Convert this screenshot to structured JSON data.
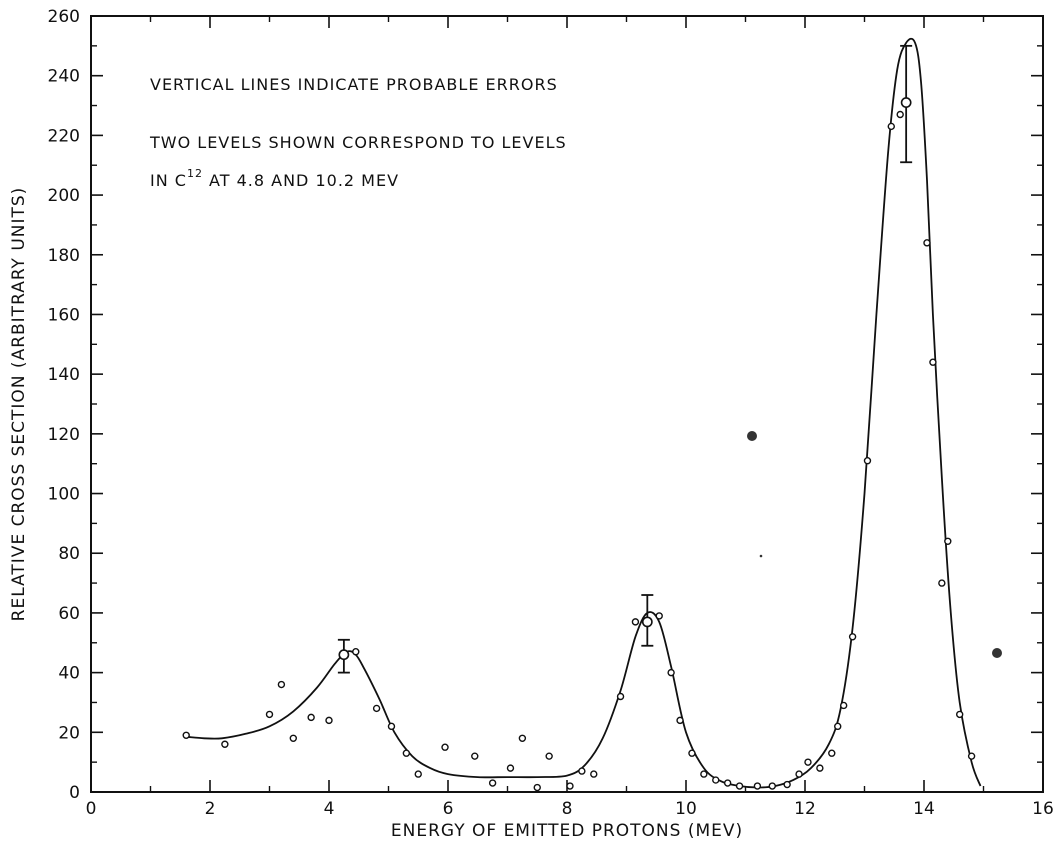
{
  "chart_data": {
    "type": "scatter",
    "title": "",
    "xlabel": "ENERGY OF EMITTED PROTONS (MEV)",
    "ylabel": "RELATIVE CROSS SECTION (ARBITRARY UNITS)",
    "xlim": [
      0,
      16
    ],
    "ylim": [
      0,
      260
    ],
    "xticks": [
      0,
      2,
      4,
      6,
      8,
      10,
      12,
      14,
      16
    ],
    "yticks": [
      0,
      20,
      40,
      60,
      80,
      100,
      120,
      140,
      160,
      180,
      200,
      220,
      240,
      260
    ],
    "grid": false,
    "annotations": [
      {
        "text": "VERTICAL LINES INDICATE PROBABLE ERRORS"
      },
      {
        "text": "TWO LEVELS SHOWN CORRESPOND TO LEVELS"
      },
      {
        "text_before": "IN C",
        "superscript": "12",
        "text_after": " AT 4.8 AND 10.2 MEV"
      }
    ],
    "points": [
      {
        "x": 1.6,
        "y": 19
      },
      {
        "x": 2.25,
        "y": 16
      },
      {
        "x": 3.0,
        "y": 26
      },
      {
        "x": 3.2,
        "y": 36
      },
      {
        "x": 3.4,
        "y": 18
      },
      {
        "x": 3.7,
        "y": 25
      },
      {
        "x": 4.0,
        "y": 24
      },
      {
        "x": 4.45,
        "y": 47
      },
      {
        "x": 4.8,
        "y": 28
      },
      {
        "x": 5.05,
        "y": 22
      },
      {
        "x": 5.3,
        "y": 13
      },
      {
        "x": 5.5,
        "y": 6
      },
      {
        "x": 5.95,
        "y": 15
      },
      {
        "x": 6.45,
        "y": 12
      },
      {
        "x": 6.75,
        "y": 3
      },
      {
        "x": 7.05,
        "y": 8
      },
      {
        "x": 7.25,
        "y": 18
      },
      {
        "x": 7.5,
        "y": 1.5
      },
      {
        "x": 7.7,
        "y": 12
      },
      {
        "x": 8.05,
        "y": 2
      },
      {
        "x": 8.25,
        "y": 7
      },
      {
        "x": 8.45,
        "y": 6
      },
      {
        "x": 8.9,
        "y": 32
      },
      {
        "x": 9.15,
        "y": 57
      },
      {
        "x": 9.55,
        "y": 59
      },
      {
        "x": 9.75,
        "y": 40
      },
      {
        "x": 9.9,
        "y": 24
      },
      {
        "x": 10.1,
        "y": 13
      },
      {
        "x": 10.3,
        "y": 6
      },
      {
        "x": 10.5,
        "y": 4
      },
      {
        "x": 10.7,
        "y": 3
      },
      {
        "x": 10.9,
        "y": 2
      },
      {
        "x": 11.2,
        "y": 2
      },
      {
        "x": 11.45,
        "y": 2
      },
      {
        "x": 11.7,
        "y": 2.5
      },
      {
        "x": 11.9,
        "y": 6
      },
      {
        "x": 12.05,
        "y": 10
      },
      {
        "x": 12.25,
        "y": 8
      },
      {
        "x": 12.45,
        "y": 13
      },
      {
        "x": 12.55,
        "y": 22
      },
      {
        "x": 12.65,
        "y": 29
      },
      {
        "x": 12.8,
        "y": 52
      },
      {
        "x": 13.05,
        "y": 111
      },
      {
        "x": 13.45,
        "y": 223
      },
      {
        "x": 13.6,
        "y": 227
      },
      {
        "x": 14.05,
        "y": 184
      },
      {
        "x": 14.15,
        "y": 144
      },
      {
        "x": 14.3,
        "y": 70
      },
      {
        "x": 14.4,
        "y": 84
      },
      {
        "x": 14.6,
        "y": 26
      },
      {
        "x": 14.8,
        "y": 12
      }
    ],
    "error_bars": [
      {
        "x": 4.25,
        "y": 46,
        "low": 40,
        "high": 51
      },
      {
        "x": 9.35,
        "y": 57,
        "low": 49,
        "high": 66
      },
      {
        "x": 13.7,
        "y": 231,
        "low": 211,
        "high": 250
      }
    ],
    "curve": [
      [
        1.6,
        18.5
      ],
      [
        1.9,
        18
      ],
      [
        2.2,
        18
      ],
      [
        2.6,
        19.5
      ],
      [
        3.0,
        22
      ],
      [
        3.4,
        27
      ],
      [
        3.8,
        35
      ],
      [
        4.1,
        43
      ],
      [
        4.3,
        47
      ],
      [
        4.45,
        46
      ],
      [
        4.6,
        41
      ],
      [
        4.85,
        31
      ],
      [
        5.1,
        20
      ],
      [
        5.4,
        12
      ],
      [
        5.7,
        8
      ],
      [
        6.0,
        6
      ],
      [
        6.5,
        5
      ],
      [
        7.0,
        5
      ],
      [
        7.5,
        5
      ],
      [
        8.0,
        5.5
      ],
      [
        8.3,
        9
      ],
      [
        8.6,
        18
      ],
      [
        8.9,
        34
      ],
      [
        9.15,
        52
      ],
      [
        9.35,
        60
      ],
      [
        9.55,
        57
      ],
      [
        9.75,
        42
      ],
      [
        10.0,
        20
      ],
      [
        10.3,
        8
      ],
      [
        10.6,
        3.5
      ],
      [
        10.9,
        2
      ],
      [
        11.2,
        1.5
      ],
      [
        11.5,
        2
      ],
      [
        11.8,
        4
      ],
      [
        12.1,
        8
      ],
      [
        12.4,
        16
      ],
      [
        12.6,
        28
      ],
      [
        12.8,
        55
      ],
      [
        13.0,
        100
      ],
      [
        13.2,
        160
      ],
      [
        13.4,
        215
      ],
      [
        13.55,
        242
      ],
      [
        13.7,
        251
      ],
      [
        13.85,
        251
      ],
      [
        13.95,
        238
      ],
      [
        14.05,
        205
      ],
      [
        14.15,
        160
      ],
      [
        14.3,
        105
      ],
      [
        14.45,
        60
      ],
      [
        14.6,
        30
      ],
      [
        14.8,
        10
      ],
      [
        14.95,
        2
      ]
    ]
  }
}
